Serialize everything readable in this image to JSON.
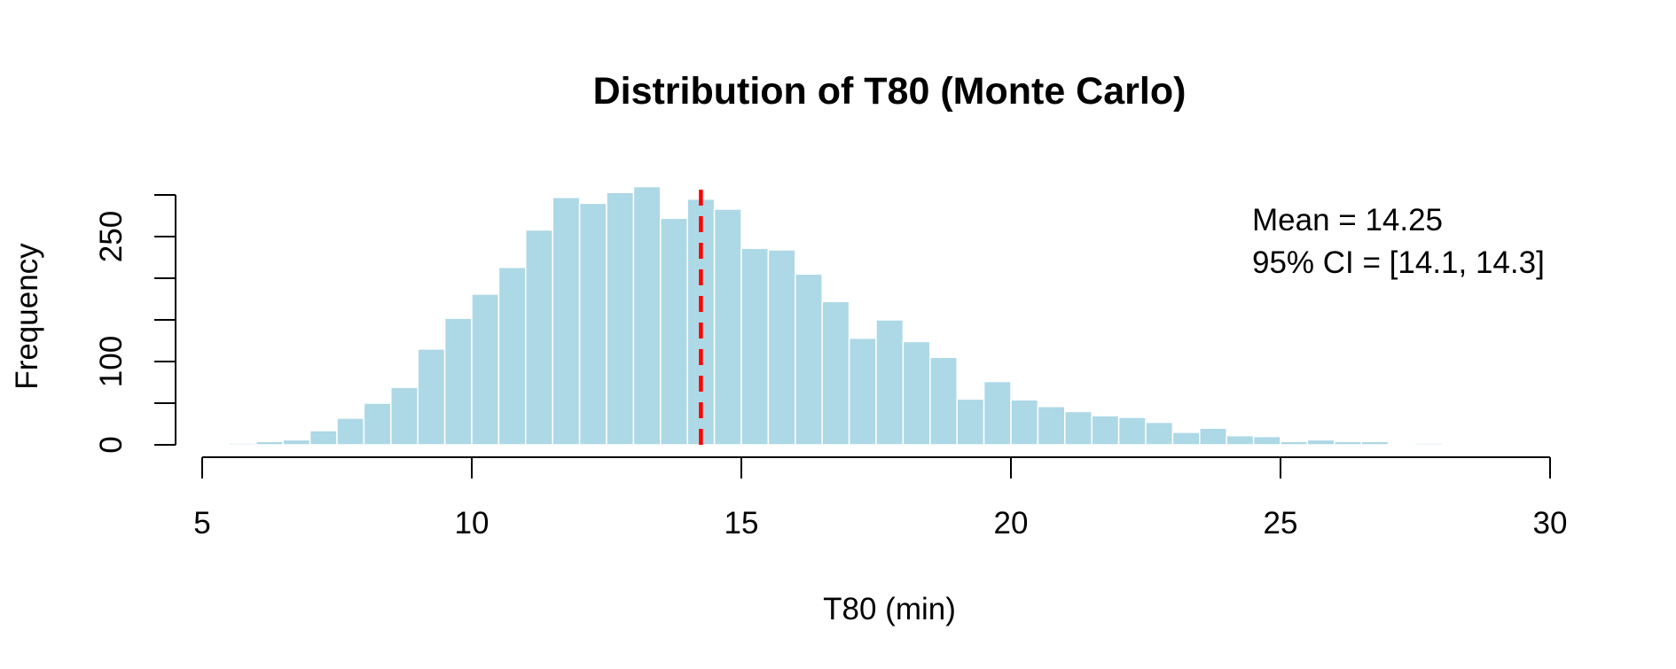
{
  "chart_data": {
    "type": "bar",
    "title": "Distribution of T80 (Monte Carlo)",
    "xlabel": "T80 (min)",
    "ylabel": "Frequency",
    "xlim": [
      5,
      30
    ],
    "ylim": [
      0,
      300
    ],
    "x_ticks": [
      "5",
      "10",
      "15",
      "20",
      "25",
      "30"
    ],
    "y_ticks": [
      "0",
      "100",
      "250"
    ],
    "y_tick_marks": [
      0,
      50,
      100,
      150,
      200,
      250,
      300
    ],
    "bin_width": 0.5,
    "bins_start": [
      5.5,
      6.0,
      6.5,
      7.0,
      7.5,
      8.0,
      8.5,
      9.0,
      9.5,
      10.0,
      10.5,
      11.0,
      11.5,
      12.0,
      12.5,
      13.0,
      13.5,
      14.0,
      14.5,
      15.0,
      15.5,
      16.0,
      16.5,
      17.0,
      17.5,
      18.0,
      18.5,
      19.0,
      19.5,
      20.0,
      20.5,
      21.0,
      21.5,
      22.0,
      22.5,
      23.0,
      23.5,
      24.0,
      24.5,
      25.0,
      25.5,
      26.0,
      26.5,
      27.0,
      27.5
    ],
    "values": [
      2,
      4,
      6,
      17,
      32,
      50,
      69,
      115,
      152,
      181,
      213,
      258,
      297,
      290,
      303,
      310,
      272,
      295,
      283,
      236,
      234,
      205,
      172,
      128,
      150,
      124,
      105,
      55,
      76,
      54,
      46,
      40,
      35,
      33,
      27,
      15,
      20,
      11,
      10,
      4,
      6,
      4,
      4,
      0,
      2
    ],
    "mean": 14.25,
    "mean_color": "#FF0000",
    "bar_color": "#ADD8E6",
    "annotations": [
      "Mean = 14.25",
      "95% CI = [14.1, 14.3]"
    ],
    "grid": false,
    "legend": "none"
  }
}
